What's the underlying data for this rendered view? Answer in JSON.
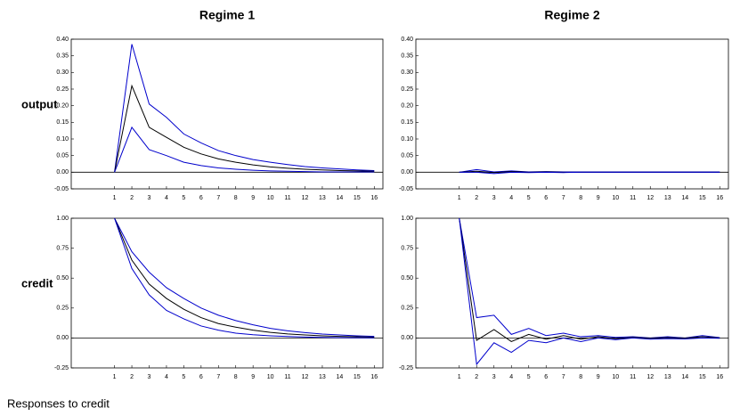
{
  "chart_data": [
    {
      "type": "line",
      "title": "Regime 1",
      "ylabel": "output",
      "x": [
        1,
        2,
        3,
        4,
        5,
        6,
        7,
        8,
        9,
        10,
        11,
        12,
        13,
        14,
        15,
        16
      ],
      "xlim": [
        -1.5,
        16.5
      ],
      "xticks": [
        1,
        2,
        3,
        4,
        5,
        6,
        7,
        8,
        9,
        10,
        11,
        12,
        13,
        14,
        15,
        16
      ],
      "ylim": [
        -0.05,
        0.4
      ],
      "yticks": [
        -0.05,
        {
          "value": 0,
          "label": "0.00"
        },
        0.05,
        {
          "value": 0.1,
          "label": "0.10"
        },
        0.15,
        {
          "value": 0.2,
          "label": "0.20"
        },
        0.25,
        {
          "value": 0.3,
          "label": "0.30"
        },
        0.35,
        {
          "value": 0.4,
          "label": "0.40"
        }
      ],
      "series": [
        {
          "color": "#0000cc",
          "values": [
            0,
            0.385,
            0.205,
            0.165,
            0.115,
            0.088,
            0.065,
            0.05,
            0.038,
            0.03,
            0.023,
            0.017,
            0.013,
            0.01,
            0.007,
            0.005
          ]
        },
        {
          "color": "#000000",
          "values": [
            0,
            0.26,
            0.135,
            0.105,
            0.075,
            0.055,
            0.04,
            0.03,
            0.022,
            0.016,
            0.012,
            0.009,
            0.007,
            0.005,
            0.004,
            0.003
          ]
        },
        {
          "color": "#0000cc",
          "values": [
            0,
            0.135,
            0.068,
            0.05,
            0.03,
            0.02,
            0.013,
            0.009,
            0.006,
            0.004,
            0.003,
            0.002,
            0.001,
            0.001,
            0.001,
            0.001
          ]
        }
      ]
    },
    {
      "type": "line",
      "title": "Regime 2",
      "x": [
        1,
        2,
        3,
        4,
        5,
        6,
        7,
        8,
        9,
        10,
        11,
        12,
        13,
        14,
        15,
        16
      ],
      "xlim": [
        -1.5,
        16.5
      ],
      "xticks": [
        1,
        2,
        3,
        4,
        5,
        6,
        7,
        8,
        9,
        10,
        11,
        12,
        13,
        14,
        15,
        16
      ],
      "ylim": [
        -0.05,
        0.4
      ],
      "yticks": [
        -0.05,
        {
          "value": 0,
          "label": "0.00"
        },
        0.05,
        {
          "value": 0.1,
          "label": "0.10"
        },
        0.15,
        {
          "value": 0.2,
          "label": "0.20"
        },
        0.25,
        {
          "value": 0.3,
          "label": "0.30"
        },
        0.35,
        {
          "value": 0.4,
          "label": "0.40"
        }
      ],
      "series": [
        {
          "color": "#0000cc",
          "values": [
            0,
            0.008,
            0.001,
            0.004,
            0.001,
            0.002,
            0.001,
            0.001,
            0.001,
            0.001,
            0.001,
            0.001,
            0.001,
            0.001,
            0.001,
            0.001
          ]
        },
        {
          "color": "#000000",
          "values": [
            0,
            0.003,
            -0.001,
            0.002,
            0,
            0.001,
            0,
            0,
            0,
            0,
            0,
            0,
            0,
            0,
            0,
            0
          ]
        },
        {
          "color": "#0000cc",
          "values": [
            0,
            0,
            -0.004,
            0,
            -0.001,
            0,
            -0.001,
            0,
            0,
            0,
            0,
            0,
            0,
            0,
            0,
            0
          ]
        }
      ]
    },
    {
      "type": "line",
      "ylabel": "credit",
      "x": [
        1,
        2,
        3,
        4,
        5,
        6,
        7,
        8,
        9,
        10,
        11,
        12,
        13,
        14,
        15,
        16
      ],
      "xlim": [
        -1.5,
        16.5
      ],
      "xticks": [
        1,
        2,
        3,
        4,
        5,
        6,
        7,
        8,
        9,
        10,
        11,
        12,
        13,
        14,
        15,
        16
      ],
      "ylim": [
        -0.25,
        1.0
      ],
      "yticks": [
        -0.25,
        {
          "value": 0,
          "label": "0.00"
        },
        0.25,
        {
          "value": 0.5,
          "label": "0.50"
        },
        0.75,
        {
          "value": 1,
          "label": "1.00"
        }
      ],
      "series": [
        {
          "color": "#0000cc",
          "values": [
            1,
            0.72,
            0.55,
            0.42,
            0.33,
            0.25,
            0.19,
            0.145,
            0.11,
            0.08,
            0.06,
            0.045,
            0.033,
            0.025,
            0.018,
            0.013
          ]
        },
        {
          "color": "#000000",
          "values": [
            1,
            0.65,
            0.45,
            0.33,
            0.24,
            0.17,
            0.12,
            0.09,
            0.065,
            0.047,
            0.034,
            0.025,
            0.018,
            0.013,
            0.01,
            0.007
          ]
        },
        {
          "color": "#0000cc",
          "values": [
            1,
            0.58,
            0.36,
            0.23,
            0.16,
            0.1,
            0.065,
            0.04,
            0.027,
            0.018,
            0.012,
            0.008,
            0.005,
            0.003,
            0.002,
            0.001
          ]
        }
      ]
    },
    {
      "type": "line",
      "x": [
        1,
        2,
        3,
        4,
        5,
        6,
        7,
        8,
        9,
        10,
        11,
        12,
        13,
        14,
        15,
        16
      ],
      "xlim": [
        -1.5,
        16.5
      ],
      "xticks": [
        1,
        2,
        3,
        4,
        5,
        6,
        7,
        8,
        9,
        10,
        11,
        12,
        13,
        14,
        15,
        16
      ],
      "ylim": [
        -0.25,
        1.0
      ],
      "yticks": [
        -0.25,
        {
          "value": 0,
          "label": "0.00"
        },
        0.25,
        {
          "value": 0.5,
          "label": "0.50"
        },
        0.75,
        {
          "value": 1,
          "label": "1.00"
        }
      ],
      "series": [
        {
          "color": "#0000cc",
          "values": [
            1,
            0.17,
            0.19,
            0.03,
            0.08,
            0.02,
            0.04,
            0.01,
            0.02,
            0.005,
            0.01,
            0,
            0.01,
            0,
            0.02,
            0.003
          ]
        },
        {
          "color": "#000000",
          "values": [
            1,
            -0.02,
            0.07,
            -0.03,
            0.03,
            -0.01,
            0.02,
            -0.01,
            0.01,
            -0.005,
            0.005,
            -0.003,
            0.003,
            -0.002,
            0.01,
            0
          ]
        },
        {
          "color": "#0000cc",
          "values": [
            1,
            -0.22,
            -0.04,
            -0.12,
            -0.02,
            -0.04,
            0,
            -0.03,
            0,
            -0.015,
            0,
            -0.01,
            -0.005,
            -0.008,
            0,
            -0.003
          ]
        }
      ]
    }
  ],
  "caption": "Responses to credit"
}
